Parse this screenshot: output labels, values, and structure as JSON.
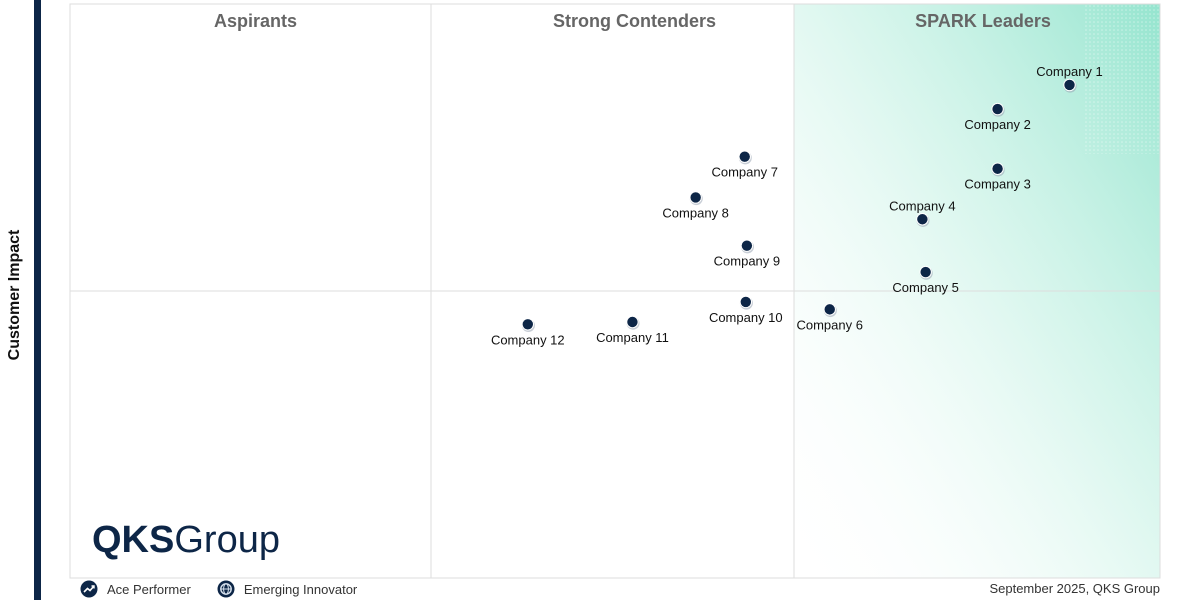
{
  "chart_data": {
    "type": "scatter",
    "ylabel": "Customer Impact",
    "quadrants": [
      "Aspirants",
      "Strong Contenders",
      "SPARK Leaders"
    ],
    "points": [
      {
        "name": "Company 1",
        "x": 0.917,
        "y": 0.859,
        "label_pos": "above"
      },
      {
        "name": "Company 2",
        "x": 0.851,
        "y": 0.817,
        "label_pos": "below"
      },
      {
        "name": "Company 3",
        "x": 0.851,
        "y": 0.713,
        "label_pos": "below"
      },
      {
        "name": "Company 4",
        "x": 0.782,
        "y": 0.625,
        "label_pos": "above"
      },
      {
        "name": "Company 5",
        "x": 0.785,
        "y": 0.533,
        "label_pos": "below"
      },
      {
        "name": "Company 6",
        "x": 0.697,
        "y": 0.468,
        "label_pos": "below"
      },
      {
        "name": "Company 7",
        "x": 0.619,
        "y": 0.734,
        "label_pos": "below"
      },
      {
        "name": "Company 8",
        "x": 0.574,
        "y": 0.663,
        "label_pos": "below"
      },
      {
        "name": "Company 9",
        "x": 0.621,
        "y": 0.579,
        "label_pos": "below"
      },
      {
        "name": "Company 10",
        "x": 0.62,
        "y": 0.481,
        "label_pos": "below"
      },
      {
        "name": "Company 11",
        "x": 0.516,
        "y": 0.446,
        "label_pos": "below"
      },
      {
        "name": "Company 12",
        "x": 0.42,
        "y": 0.442,
        "label_pos": "below"
      }
    ],
    "xlim": [
      0,
      1
    ],
    "ylim": [
      0,
      1
    ],
    "grid": true
  },
  "branding": {
    "logo_bold": "QKS",
    "logo_light": "Group"
  },
  "legend": {
    "items": [
      {
        "label": "Ace Performer",
        "icon": "trend-up-icon"
      },
      {
        "label": "Emerging Innovator",
        "icon": "globe-icon"
      }
    ]
  },
  "footer": {
    "date": "September 2025, QKS Group"
  },
  "colors": {
    "marker": "#0d2647",
    "leader_gradient": "#8fe3cc",
    "quadrant_label": "#666666",
    "axis_bar": "#0d2647"
  }
}
